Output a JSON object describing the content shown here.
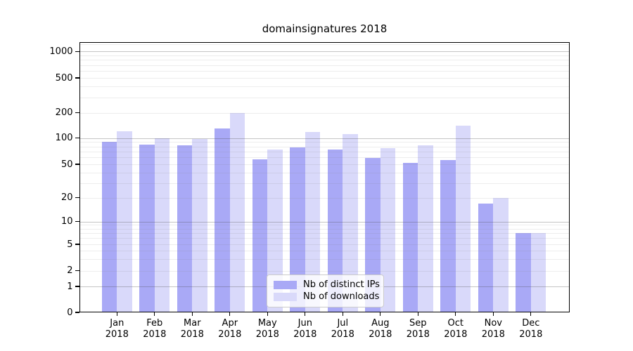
{
  "title": "domainsignatures 2018",
  "chart_data": {
    "type": "bar",
    "title": "domainsignatures 2018",
    "categories": [
      "Jan",
      "Feb",
      "Mar",
      "Apr",
      "May",
      "Jun",
      "Jul",
      "Aug",
      "Sep",
      "Oct",
      "Nov",
      "Dec"
    ],
    "category_year": "2018",
    "series": [
      {
        "name": "Nb of distinct IPs",
        "color": "#a9a9f6",
        "values": [
          90,
          84,
          82,
          130,
          57,
          78,
          74,
          59,
          52,
          56,
          17,
          7
        ]
      },
      {
        "name": "Nb of downloads",
        "color": "#d9d9fa",
        "values": [
          120,
          100,
          97,
          197,
          74,
          119,
          112,
          77,
          83,
          140,
          20,
          7
        ]
      }
    ],
    "yscale": "symlog",
    "yticks": [
      0,
      1,
      2,
      5,
      10,
      20,
      50,
      100,
      200,
      500,
      1000
    ],
    "ylim": [
      0,
      1280
    ],
    "grid": true,
    "legend_position": "lower center",
    "colors": {
      "major_gridline": "rgba(80,80,80,0.33)",
      "minor_gridline": "rgba(128,128,128,0.14)",
      "spine": "#000000",
      "background": "#ffffff"
    }
  }
}
